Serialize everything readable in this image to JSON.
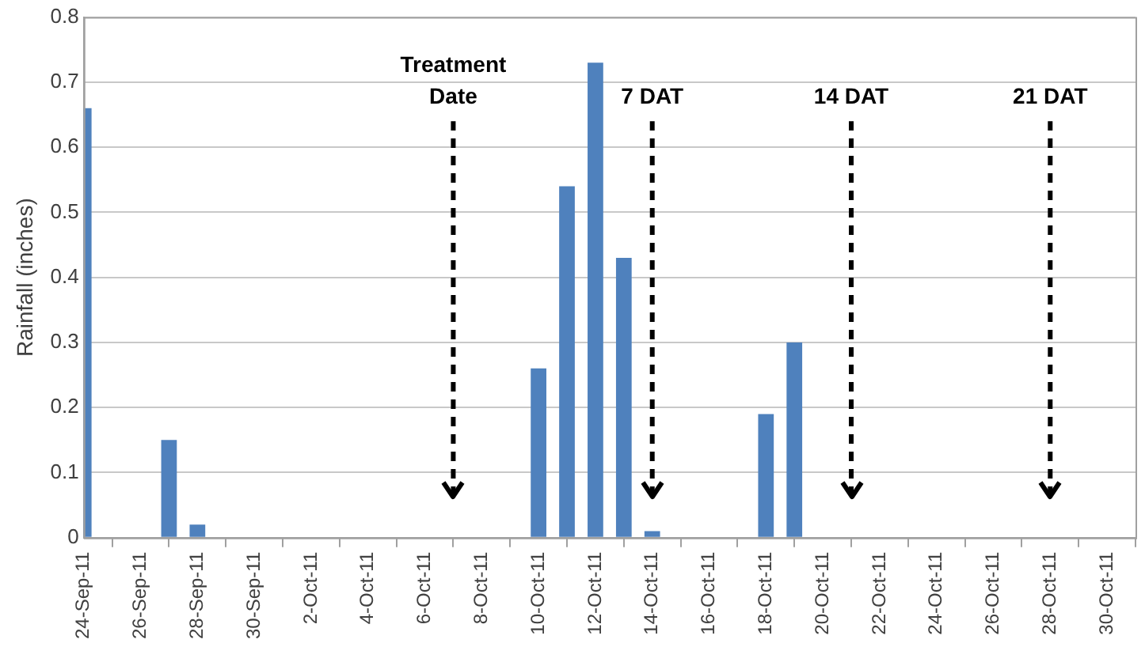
{
  "chart_data": {
    "type": "bar",
    "ylabel": "Rainfall (inches)",
    "x": [
      "--09-24",
      "--09-27",
      "--09-28",
      "--10-10",
      "--10-11",
      "--10-12",
      "--10-13",
      "--10-14",
      "--10-18",
      "--10-19"
    ],
    "values": [
      0.66,
      0.15,
      0.02,
      0.26,
      0.54,
      0.73,
      0.43,
      0.01,
      0.19,
      0.3
    ],
    "color": "#4f81bd",
    "xlim": [
      "--09-24",
      "--10-31"
    ],
    "xticks": [
      {
        "value": "--09-24",
        "label": "24-Sep-11"
      },
      {
        "value": "--09-26",
        "label": "26-Sep-11"
      },
      {
        "value": "--09-28",
        "label": "28-Sep-11"
      },
      {
        "value": "--09-30",
        "label": "30-Sep-11"
      },
      {
        "value": "--10-02",
        "label": "2-Oct-11"
      },
      {
        "value": "--10-04",
        "label": "4-Oct-11"
      },
      {
        "value": "--10-06",
        "label": "6-Oct-11"
      },
      {
        "value": "--10-08",
        "label": "8-Oct-11"
      },
      {
        "value": "--10-10",
        "label": "10-Oct-11"
      },
      {
        "value": "--10-12",
        "label": "12-Oct-11"
      },
      {
        "value": "--10-14",
        "label": "14-Oct-11"
      },
      {
        "value": "--10-16",
        "label": "16-Oct-11"
      },
      {
        "value": "--10-18",
        "label": "18-Oct-11"
      },
      {
        "value": "--10-20",
        "label": "20-Oct-11"
      },
      {
        "value": "--10-22",
        "label": "22-Oct-11"
      },
      {
        "value": "--10-24",
        "label": "24-Oct-11"
      },
      {
        "value": "--10-26",
        "label": "26-Oct-11"
      },
      {
        "value": "--10-28",
        "label": "28-Oct-11"
      },
      {
        "value": "--10-30",
        "label": "30-Oct-11"
      }
    ],
    "ylim": [
      0,
      0.8
    ],
    "yticks": [
      0,
      0.1,
      0.2,
      0.3,
      0.4,
      0.5,
      0.6,
      0.7,
      0.8
    ],
    "grid": "y",
    "ref_lines": [
      {
        "axis": "x",
        "value": "--10-07",
        "label": "Treatment Date",
        "color": "#000000",
        "line_style": "dashed"
      },
      {
        "axis": "x",
        "value": "--10-14",
        "label": "7 DAT",
        "color": "#000000",
        "line_style": "dashed"
      },
      {
        "axis": "x",
        "value": "--10-21",
        "label": "14 DAT",
        "color": "#000000",
        "line_style": "dashed"
      },
      {
        "axis": "x",
        "value": "--10-28",
        "label": "21 DAT",
        "color": "#000000",
        "line_style": "dashed"
      }
    ]
  }
}
